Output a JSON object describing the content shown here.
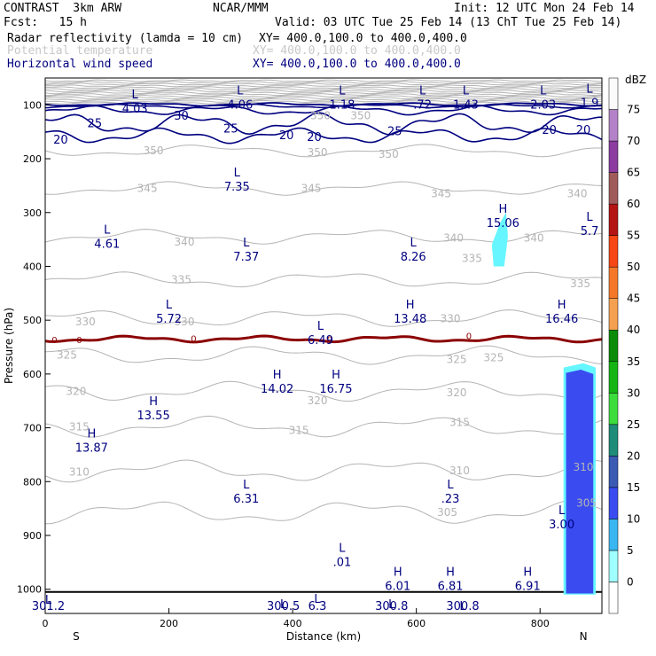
{
  "header": {
    "model": "CONTRAST  3km ARW",
    "org": "NCAR/MMM",
    "init": "Init: 12 UTC Mon 24 Feb 14",
    "fcst": "Fcst:   15 h",
    "valid": "Valid: 03 UTC Tue 25 Feb 14 (13 ChT Tue 25 Feb 14)",
    "fields": [
      {
        "name": "Radar reflectivity (lamda = 10 cm)",
        "xy": "XY= 400.0,100.0 to 400.0,400.0"
      },
      {
        "name": "Potential temperature",
        "xy": "XY= 400.0,100.0 to 400.0,400.0"
      },
      {
        "name": "Horizontal wind speed",
        "xy": "XY= 400.0,100.0 to 400.0,400.0"
      }
    ]
  },
  "colors": {
    "wind": "#000080",
    "theta": "#b4b4b4",
    "zero_line": "#8b0000",
    "ground": "#000000",
    "echo_light": "#66f6ff",
    "echo_mid": "#3a4cf0",
    "echo_strong": "#2233dd"
  },
  "chart_data": {
    "type": "contour-cross-section",
    "xlabel": "Distance (km)",
    "ylabel": "Pressure (hPa)",
    "xlim": [
      0,
      900
    ],
    "ylim": [
      1045,
      50
    ],
    "x_ticks": [
      0,
      200,
      400,
      600,
      800
    ],
    "y_ticks": [
      100,
      200,
      300,
      400,
      500,
      600,
      700,
      800,
      900,
      1000
    ],
    "x_end_labels": {
      "left": "S",
      "right": "N"
    },
    "colorbar": {
      "title": "dBZ",
      "levels": [
        0,
        5,
        10,
        15,
        20,
        25,
        30,
        35,
        40,
        45,
        50,
        55,
        60,
        65,
        70,
        75
      ],
      "colors": [
        "#ffffff",
        "#a0ffff",
        "#3ab6f0",
        "#3a4cf0",
        "#3a5ab4",
        "#1e8c78",
        "#3cdc3c",
        "#14b414",
        "#0a8c0a",
        "#f5a050",
        "#f57828",
        "#f54614",
        "#b41414",
        "#a05a5a",
        "#8c3ca0",
        "#b482c8",
        "#fafafa"
      ]
    },
    "wind_contours": [
      {
        "value": "25",
        "x": 80,
        "p": 135
      },
      {
        "value": "30",
        "x": 220,
        "p": 121
      },
      {
        "value": "25",
        "x": 300,
        "p": 145
      },
      {
        "value": "20",
        "x": 25,
        "p": 165
      },
      {
        "value": "20",
        "x": 390,
        "p": 157
      },
      {
        "value": "20",
        "x": 435,
        "p": 160
      },
      {
        "value": "25",
        "x": 565,
        "p": 150
      },
      {
        "value": "20",
        "x": 815,
        "p": 147
      },
      {
        "value": "20",
        "x": 870,
        "p": 147
      }
    ],
    "theta_contours": [
      {
        "value": "350",
        "x": 445,
        "p": 120
      },
      {
        "value": "350",
        "x": 510,
        "p": 120
      },
      {
        "value": "350",
        "x": 175,
        "p": 185
      },
      {
        "value": "350",
        "x": 440,
        "p": 188
      },
      {
        "value": "350",
        "x": 555,
        "p": 192
      },
      {
        "value": "345",
        "x": 165,
        "p": 255
      },
      {
        "value": "345",
        "x": 430,
        "p": 255
      },
      {
        "value": "345",
        "x": 640,
        "p": 265
      },
      {
        "value": "340",
        "x": 860,
        "p": 265
      },
      {
        "value": "340",
        "x": 225,
        "p": 355
      },
      {
        "value": "340",
        "x": 660,
        "p": 347
      },
      {
        "value": "340",
        "x": 790,
        "p": 347
      },
      {
        "value": "335",
        "x": 690,
        "p": 385
      },
      {
        "value": "335",
        "x": 220,
        "p": 425
      },
      {
        "value": "335",
        "x": 865,
        "p": 432
      },
      {
        "value": "330",
        "x": 65,
        "p": 503
      },
      {
        "value": "330",
        "x": 225,
        "p": 503
      },
      {
        "value": "330",
        "x": 655,
        "p": 497
      },
      {
        "value": "325",
        "x": 35,
        "p": 565
      },
      {
        "value": "325",
        "x": 665,
        "p": 573
      },
      {
        "value": "325",
        "x": 725,
        "p": 570
      },
      {
        "value": "320",
        "x": 50,
        "p": 632
      },
      {
        "value": "320",
        "x": 440,
        "p": 650
      },
      {
        "value": "320",
        "x": 665,
        "p": 635
      },
      {
        "value": "315",
        "x": 55,
        "p": 698
      },
      {
        "value": "315",
        "x": 410,
        "p": 705
      },
      {
        "value": "315",
        "x": 670,
        "p": 690
      },
      {
        "value": "310",
        "x": 55,
        "p": 782
      },
      {
        "value": "310",
        "x": 670,
        "p": 780
      },
      {
        "value": "310",
        "x": 870,
        "p": 773
      },
      {
        "value": "305",
        "x": 650,
        "p": 857
      },
      {
        "value": "305",
        "x": 875,
        "p": 840
      }
    ],
    "L_markers": [
      {
        "label": "L",
        "value": "4.03",
        "x": 145,
        "p": 98
      },
      {
        "label": "L",
        "value": "4.06",
        "x": 315,
        "p": 90
      },
      {
        "label": "L",
        "value": "1.18",
        "x": 480,
        "p": 90
      },
      {
        "label": "L",
        "value": ".72",
        "x": 610,
        "p": 90
      },
      {
        "label": "L",
        "value": "1.43",
        "x": 680,
        "p": 90
      },
      {
        "label": "L",
        "value": "2.03",
        "x": 805,
        "p": 90
      },
      {
        "label": "L",
        "value": "1.9",
        "x": 880,
        "p": 87
      },
      {
        "label": "L",
        "value": "7.35",
        "x": 310,
        "p": 243
      },
      {
        "label": "L",
        "value": "4.61",
        "x": 100,
        "p": 349
      },
      {
        "label": "L",
        "value": "7.37",
        "x": 325,
        "p": 373
      },
      {
        "label": "L",
        "value": "8.26",
        "x": 595,
        "p": 373
      },
      {
        "label": "L",
        "value": "5.7",
        "x": 880,
        "p": 325
      },
      {
        "label": "L",
        "value": "5.72",
        "x": 200,
        "p": 488
      },
      {
        "label": "L",
        "value": "6.49",
        "x": 445,
        "p": 528
      },
      {
        "label": "L",
        "value": ".23",
        "x": 655,
        "p": 823
      },
      {
        "label": "L",
        "value": "6.31",
        "x": 325,
        "p": 823
      },
      {
        "label": "L",
        "value": "3.00",
        "x": 835,
        "p": 870
      },
      {
        "label": "L",
        "value": ".01",
        "x": 480,
        "p": 940
      },
      {
        "label": "L",
        "value": "301.2",
        "x": 5,
        "p": 1037
      },
      {
        "label": "L",
        "value": "300.5",
        "x": 385,
        "p": 1045
      },
      {
        "label": "L",
        "value": "300.8",
        "x": 560,
        "p": 1045
      },
      {
        "label": "L",
        "value": "300.8",
        "x": 675,
        "p": 1055
      },
      {
        "label": "L",
        "value": "6.3",
        "x": 440,
        "p": 1035
      }
    ],
    "H_markers": [
      {
        "label": "H",
        "value": "15.06",
        "x": 740,
        "p": 310
      },
      {
        "label": "H",
        "value": "13.48",
        "x": 590,
        "p": 488
      },
      {
        "label": "H",
        "value": "16.46",
        "x": 835,
        "p": 488
      },
      {
        "label": "H",
        "value": "14.02",
        "x": 375,
        "p": 618
      },
      {
        "label": "H",
        "value": "16.75",
        "x": 470,
        "p": 618
      },
      {
        "label": "H",
        "value": "13.55",
        "x": 175,
        "p": 668
      },
      {
        "label": "H",
        "value": "13.87",
        "x": 75,
        "p": 728
      },
      {
        "label": "H",
        "value": "6.01",
        "x": 570,
        "p": 985
      },
      {
        "label": "H",
        "value": "6.81",
        "x": 655,
        "p": 985
      },
      {
        "label": "H",
        "value": "6.91",
        "x": 780,
        "p": 985
      }
    ],
    "zero_isotherm_labels": [
      {
        "value": "0",
        "x": 15,
        "p": 538
      },
      {
        "value": "0",
        "x": 55,
        "p": 538
      },
      {
        "value": "0",
        "x": 240,
        "p": 535
      },
      {
        "value": "0",
        "x": 460,
        "p": 537
      },
      {
        "value": "0",
        "x": 685,
        "p": 530
      }
    ]
  }
}
